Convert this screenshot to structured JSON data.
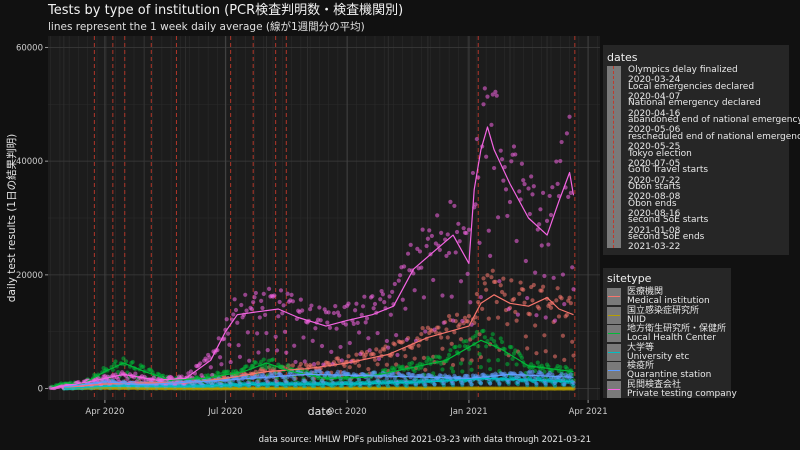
{
  "chart_data": {
    "type": "scatter+line",
    "title": "Tests by type of institution (PCR検査判明数・検査機関別)",
    "subtitle": "lines represent the 1 week daily average (線が1週間分の平均)",
    "xlabel": "date",
    "ylabel": "daily test results (1日の結果判明)",
    "caption": "data source: MHLW PDFs published 2021-03-23 with data through 2021-03-21",
    "x_range": [
      "2020-02-18",
      "2021-04-10"
    ],
    "ylim": [
      -2000,
      62000
    ],
    "x_ticks": [
      {
        "date": "2020-04-01",
        "label": "Apr 2020"
      },
      {
        "date": "2020-07-01",
        "label": "Jul 2020"
      },
      {
        "date": "2020-10-01",
        "label": "Oct 2020"
      },
      {
        "date": "2021-01-01",
        "label": "Jan 2021"
      },
      {
        "date": "2021-04-01",
        "label": "Apr 2021"
      }
    ],
    "y_ticks": [
      0,
      20000,
      40000,
      60000
    ],
    "y_tick_labels": [
      "0",
      "20000",
      "40000",
      "60000"
    ],
    "dates_legend_title": "dates",
    "events": [
      {
        "label": "Olympics delay finalized",
        "date": "2020-03-24"
      },
      {
        "label": "Local emergencies declared",
        "date": "2020-04-07"
      },
      {
        "label": "National emergency declared",
        "date": "2020-04-16"
      },
      {
        "label": "abandoned end of national emergency",
        "date": "2020-05-06"
      },
      {
        "label": "rescheduled end of national emergency",
        "date": "2020-05-25"
      },
      {
        "label": "Tokyo election",
        "date": "2020-07-05"
      },
      {
        "label": "GoTo Travel starts",
        "date": "2020-07-22"
      },
      {
        "label": "Obon starts",
        "date": "2020-08-08"
      },
      {
        "label": "Obon ends",
        "date": "2020-08-16"
      },
      {
        "label": "second SoE starts",
        "date": "2021-01-08"
      },
      {
        "label": "second SoE ends",
        "date": "2021-03-22"
      }
    ],
    "sitetype_legend_title": "sitetype",
    "series": [
      {
        "name": "医療機関",
        "name_en": "Medical institution",
        "color": "#F8766D",
        "points": [
          [
            "2020-03-01",
            200
          ],
          [
            "2020-04-01",
            800
          ],
          [
            "2020-05-01",
            1000
          ],
          [
            "2020-06-01",
            1000
          ],
          [
            "2020-07-01",
            1800
          ],
          [
            "2020-08-01",
            3000
          ],
          [
            "2020-09-01",
            3500
          ],
          [
            "2020-10-01",
            4500
          ],
          [
            "2020-11-01",
            6000
          ],
          [
            "2020-12-01",
            9000
          ],
          [
            "2021-01-01",
            11000
          ],
          [
            "2021-01-10",
            15000
          ],
          [
            "2021-01-20",
            16500
          ],
          [
            "2021-02-01",
            15000
          ],
          [
            "2021-02-15",
            14500
          ],
          [
            "2021-03-01",
            16000
          ],
          [
            "2021-03-10",
            14000
          ],
          [
            "2021-03-21",
            13000
          ]
        ]
      },
      {
        "name": "国立感染症研究所",
        "name_en": "NIID",
        "color": "#B79F00",
        "points": [
          [
            "2020-03-01",
            100
          ],
          [
            "2020-04-01",
            150
          ],
          [
            "2020-06-01",
            50
          ],
          [
            "2020-09-01",
            20
          ],
          [
            "2021-03-21",
            10
          ]
        ]
      },
      {
        "name": "地方衛生研究所・保健所",
        "name_en": "Local Health Center",
        "color": "#00BA38",
        "points": [
          [
            "2020-02-20",
            200
          ],
          [
            "2020-03-01",
            1000
          ],
          [
            "2020-03-15",
            800
          ],
          [
            "2020-04-01",
            3000
          ],
          [
            "2020-04-15",
            4500
          ],
          [
            "2020-05-01",
            3000
          ],
          [
            "2020-05-20",
            1500
          ],
          [
            "2020-06-15",
            1800
          ],
          [
            "2020-07-15",
            3000
          ],
          [
            "2020-08-01",
            4500
          ],
          [
            "2020-08-20",
            3000
          ],
          [
            "2020-09-15",
            1800
          ],
          [
            "2020-10-15",
            2000
          ],
          [
            "2020-11-15",
            3500
          ],
          [
            "2020-12-15",
            5000
          ],
          [
            "2021-01-10",
            8500
          ],
          [
            "2021-01-25",
            7000
          ],
          [
            "2021-02-15",
            4000
          ],
          [
            "2021-03-21",
            3000
          ]
        ]
      },
      {
        "name": "大学等",
        "name_en": "University etc",
        "color": "#00BFC4",
        "points": [
          [
            "2020-03-01",
            50
          ],
          [
            "2020-04-15",
            500
          ],
          [
            "2020-06-01",
            400
          ],
          [
            "2020-08-01",
            800
          ],
          [
            "2020-10-01",
            800
          ],
          [
            "2020-12-01",
            1200
          ],
          [
            "2021-01-15",
            1800
          ],
          [
            "2021-03-21",
            1200
          ]
        ]
      },
      {
        "name": "検疫所",
        "name_en": "Quarantine station",
        "color": "#619CFF",
        "points": [
          [
            "2020-03-01",
            300
          ],
          [
            "2020-04-01",
            1200
          ],
          [
            "2020-05-01",
            700
          ],
          [
            "2020-07-01",
            1500
          ],
          [
            "2020-09-01",
            2500
          ],
          [
            "2020-11-01",
            2200
          ],
          [
            "2021-01-01",
            1800
          ],
          [
            "2021-02-01",
            2500
          ],
          [
            "2021-03-21",
            2000
          ]
        ]
      },
      {
        "name": "民間検査会社",
        "name_en": "Private testing company",
        "color": "#F564E3",
        "points": [
          [
            "2020-02-20",
            100
          ],
          [
            "2020-03-01",
            500
          ],
          [
            "2020-03-20",
            1200
          ],
          [
            "2020-04-15",
            2500
          ],
          [
            "2020-05-10",
            1500
          ],
          [
            "2020-06-01",
            1800
          ],
          [
            "2020-06-20",
            5000
          ],
          [
            "2020-07-01",
            10000
          ],
          [
            "2020-07-10",
            13000
          ],
          [
            "2020-07-25",
            13500
          ],
          [
            "2020-08-10",
            14000
          ],
          [
            "2020-08-25",
            12500
          ],
          [
            "2020-09-15",
            11000
          ],
          [
            "2020-10-01",
            12000
          ],
          [
            "2020-10-20",
            13000
          ],
          [
            "2020-11-05",
            14500
          ],
          [
            "2020-11-20",
            21000
          ],
          [
            "2020-12-05",
            24000
          ],
          [
            "2020-12-20",
            27000
          ],
          [
            "2021-01-01",
            22000
          ],
          [
            "2021-01-05",
            35000
          ],
          [
            "2021-01-10",
            42000
          ],
          [
            "2021-01-15",
            46000
          ],
          [
            "2021-01-20",
            42000
          ],
          [
            "2021-02-01",
            36000
          ],
          [
            "2021-02-15",
            30000
          ],
          [
            "2021-03-01",
            27000
          ],
          [
            "2021-03-10",
            33000
          ],
          [
            "2021-03-18",
            38000
          ],
          [
            "2021-03-21",
            34000
          ]
        ]
      }
    ]
  }
}
